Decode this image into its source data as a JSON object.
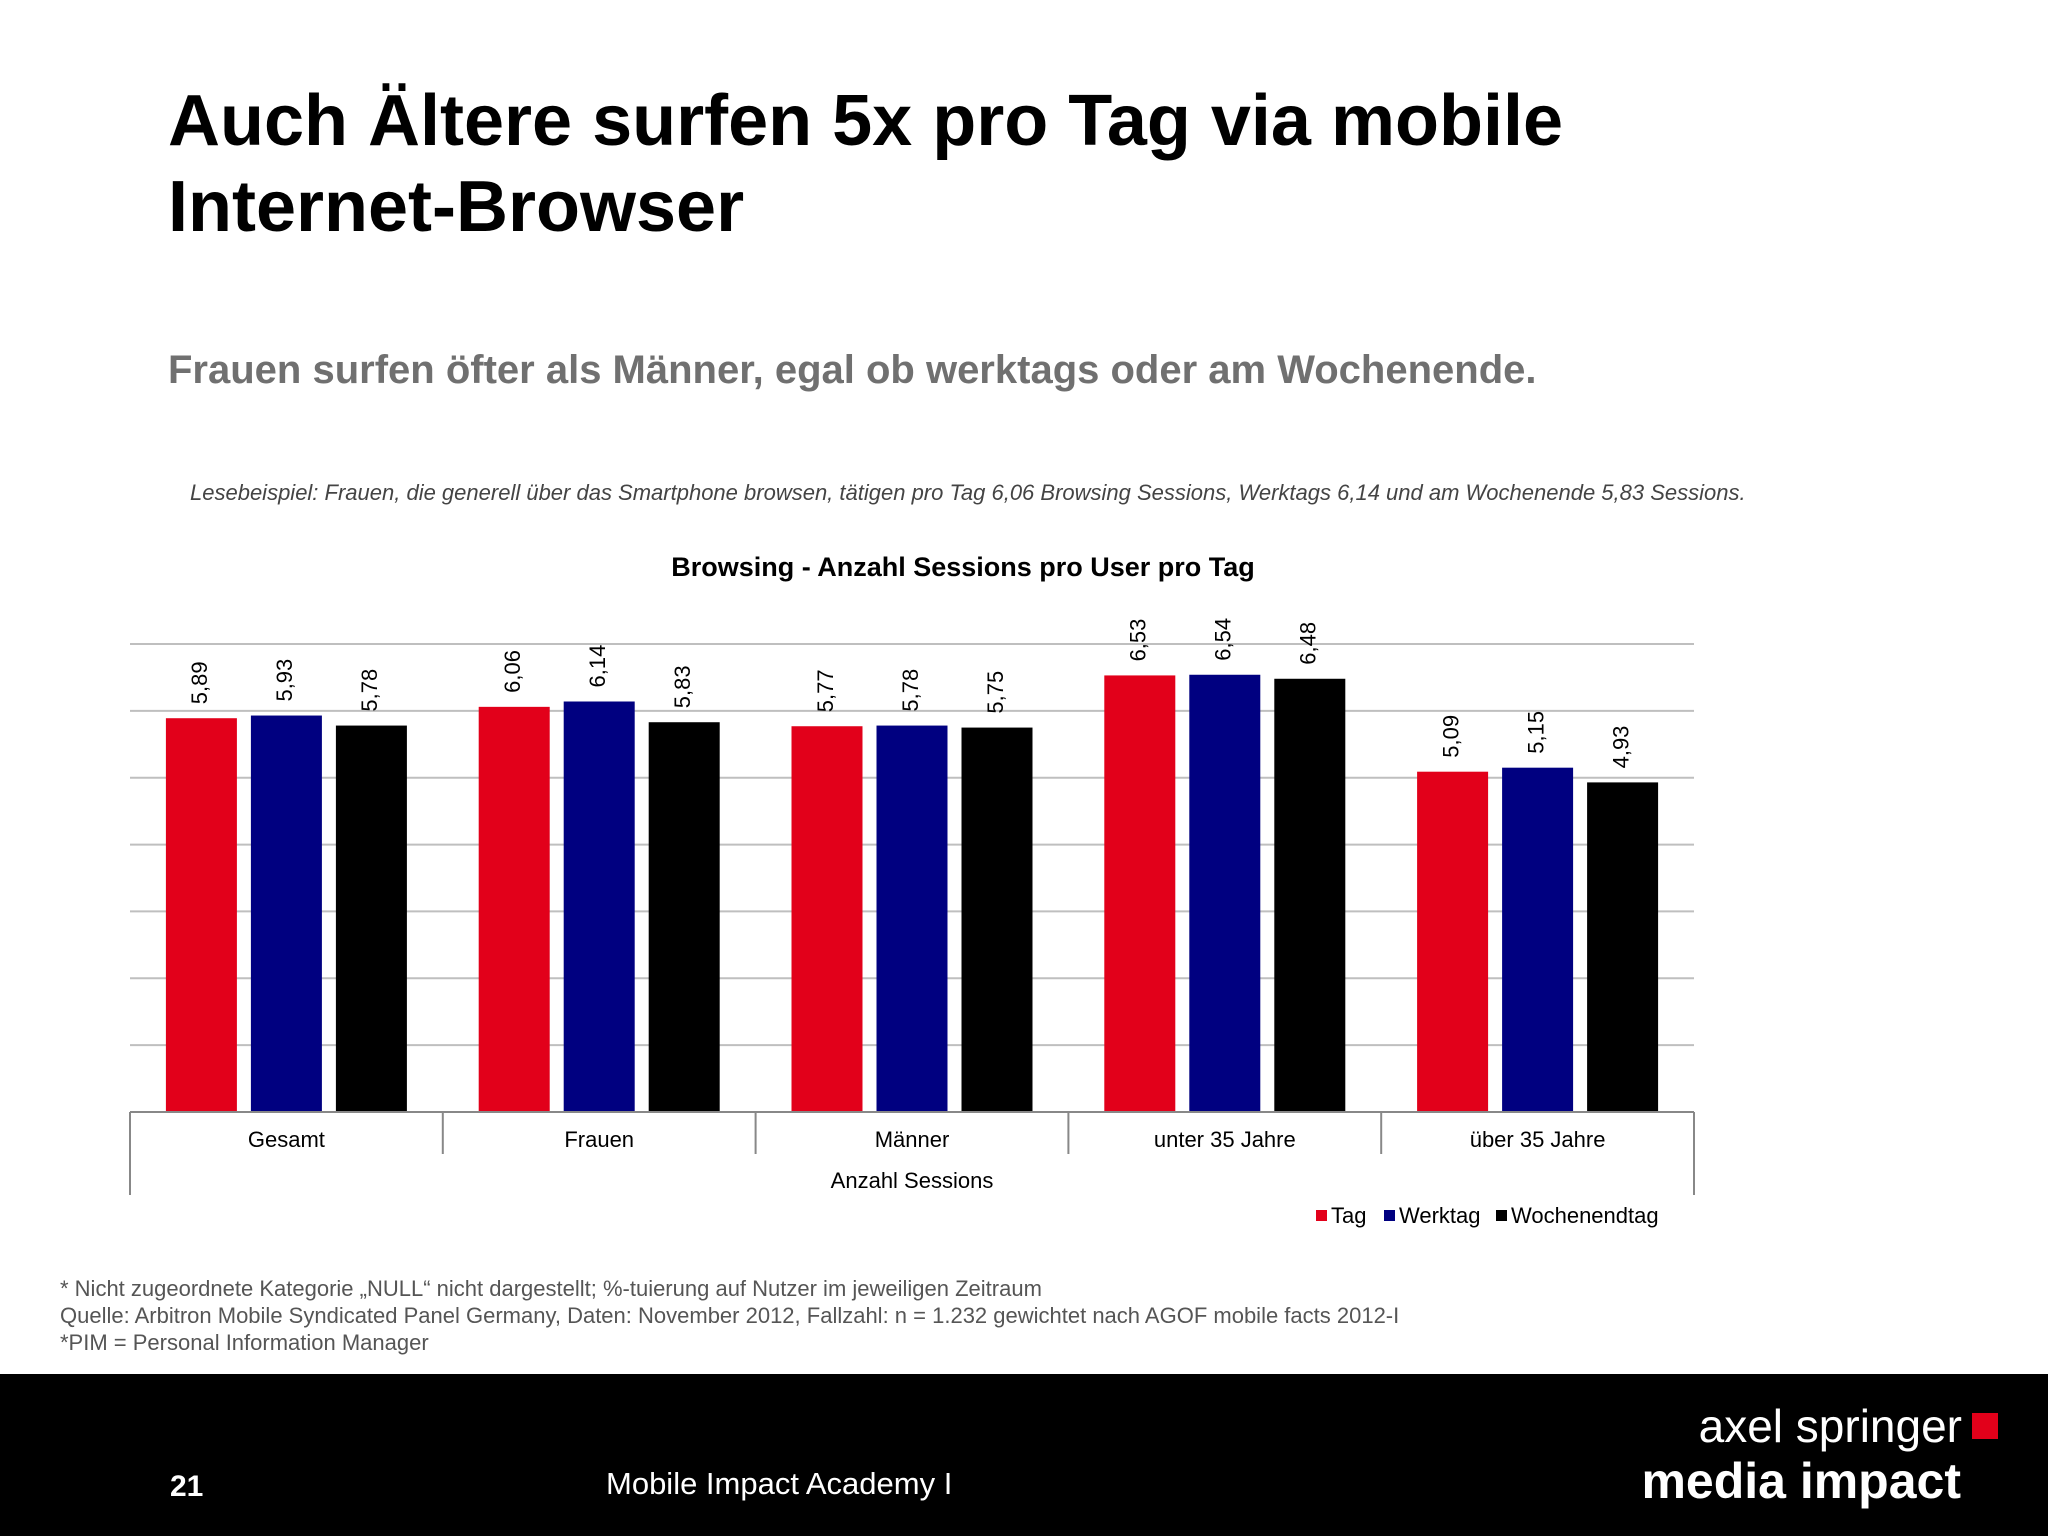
{
  "slide": {
    "title_line1": "Auch Ältere surfen 5x pro Tag via mobile",
    "title_line2": "Internet-Browser",
    "subtitle": "Frauen surfen öfter als Männer, egal ob werktags oder am Wochenende.",
    "example": "Lesebeispiel: Frauen, die generell über das Smartphone browsen, tätigen pro Tag 6,06 Browsing Sessions, Werktags 6,14 und am Wochenende 5,83 Sessions."
  },
  "chart_data": {
    "type": "bar",
    "title": "Browsing - Anzahl Sessions pro User pro Tag",
    "xlabel": "Anzahl Sessions",
    "ylabel": "",
    "ylim": [
      0,
      7
    ],
    "grid": true,
    "legend_position": "bottom-right",
    "categories": [
      "Gesamt",
      "Frauen",
      "Männer",
      "unter 35 Jahre",
      "über 35 Jahre"
    ],
    "series": [
      {
        "name": "Tag",
        "color": "#e2001a",
        "values": [
          5.89,
          6.06,
          5.77,
          6.53,
          5.09
        ],
        "labels": [
          "5,89",
          "6,06",
          "5,77",
          "6,53",
          "5,09"
        ]
      },
      {
        "name": "Werktag",
        "color": "#000080",
        "values": [
          5.93,
          6.14,
          5.78,
          6.54,
          5.15
        ],
        "labels": [
          "5,93",
          "6,14",
          "5,78",
          "6,54",
          "5,15"
        ]
      },
      {
        "name": "Wochenendtag",
        "color": "#000000",
        "values": [
          5.78,
          5.83,
          5.75,
          6.48,
          4.93
        ],
        "labels": [
          "5,78",
          "5,83",
          "5,75",
          "6,48",
          "4,93"
        ]
      }
    ]
  },
  "footnotes": {
    "line1": "* Nicht zugeordnete Kategorie „NULL“ nicht dargestellt; %-tuierung auf Nutzer im jeweiligen Zeitraum",
    "line2": "Quelle: Arbitron Mobile Syndicated Panel Germany, Daten: November 2012, Fallzahl: n = 1.232 gewichtet nach AGOF mobile facts 2012-I",
    "line3": "*PIM = Personal Information Manager"
  },
  "footer": {
    "page_number": "21",
    "label": "Mobile Impact Academy I",
    "logo_line1": "axel springer",
    "logo_line2": "media impact",
    "brand_color": "#e2001a"
  }
}
